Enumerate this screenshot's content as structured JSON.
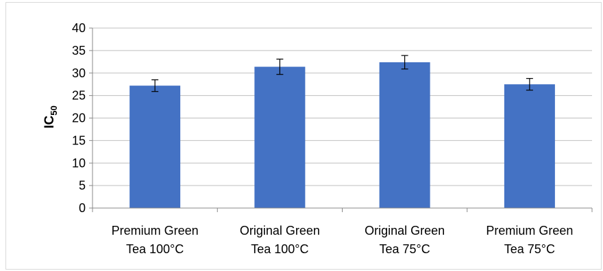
{
  "chart_data": {
    "type": "bar",
    "categories": [
      [
        "Premium Green",
        "Tea 100°C"
      ],
      [
        "Original Green",
        "Tea 100°C"
      ],
      [
        "Original Green",
        "Tea 75°C"
      ],
      [
        "Premium Green",
        "Tea 75°C"
      ]
    ],
    "series": [
      {
        "values": [
          27.2,
          31.4,
          32.4,
          27.5
        ],
        "errors": [
          1.3,
          1.7,
          1.5,
          1.3
        ]
      }
    ],
    "ylabel": "IC",
    "ylabel_subscript": "50",
    "ylim": [
      0,
      40
    ],
    "yticks": [
      "0",
      "5",
      "10",
      "15",
      "20",
      "25",
      "30",
      "35",
      "40"
    ],
    "grid": true,
    "legend": "none",
    "colors": {
      "bar": "#4472C4",
      "grid": "#bfbfbf",
      "axis": "#888888",
      "error": "#000000"
    }
  }
}
